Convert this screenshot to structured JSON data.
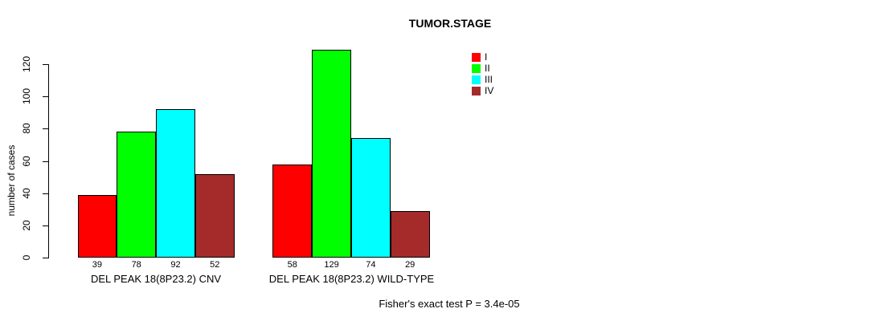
{
  "chart_data": {
    "type": "bar",
    "title": "TUMOR.STAGE",
    "ylabel": "number of cases",
    "xlabel": "",
    "ylim": [
      0,
      130
    ],
    "yticks": [
      0,
      20,
      40,
      60,
      80,
      100,
      120
    ],
    "categories": [
      "DEL PEAK 18(8P23.2) CNV",
      "DEL PEAK 18(8P23.2) WILD-TYPE"
    ],
    "series": [
      {
        "name": "I",
        "color": "#ff0000",
        "values": [
          39,
          58
        ]
      },
      {
        "name": "II",
        "color": "#00ff00",
        "values": [
          78,
          129
        ]
      },
      {
        "name": "III",
        "color": "#00ffff",
        "values": [
          92,
          74
        ]
      },
      {
        "name": "IV",
        "color": "#a52a2a",
        "values": [
          52,
          29
        ]
      }
    ],
    "legend_position": "top-right",
    "grid": false,
    "bar_value_labels_shown": true,
    "annotation": "Fisher's exact test P = 3.4e-05"
  },
  "colors": {
    "background": "#ffffff",
    "axis": "#000000",
    "text": "#000000"
  }
}
